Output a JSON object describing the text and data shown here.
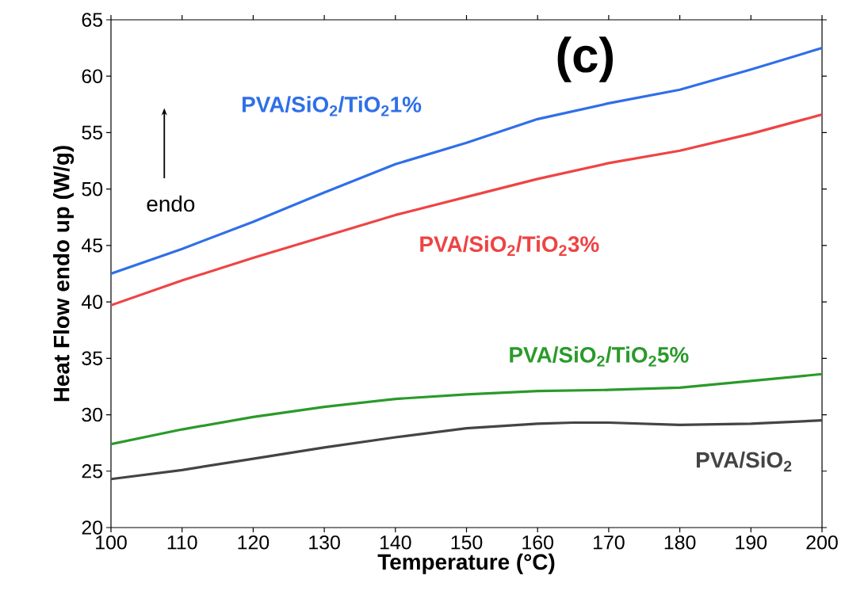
{
  "chart_data": {
    "type": "line",
    "title": "(c)",
    "xlabel": "Temperature (°C)",
    "ylabel": "Heat Flow endo up (W/g)",
    "xlim": [
      100,
      200
    ],
    "xticks": [
      100,
      110,
      120,
      130,
      140,
      150,
      160,
      170,
      180,
      190,
      200
    ],
    "ylim": [
      20,
      65
    ],
    "yticks": [
      20,
      25,
      30,
      35,
      40,
      45,
      50,
      55,
      60,
      65
    ],
    "grid": false,
    "legend": false,
    "marker": "none",
    "line_style": "solid",
    "annotations": [
      "endo"
    ],
    "series": [
      {
        "name": "PVA/SiO$_{2}$/TiO$_{2}$1%",
        "color": "#2f6fe8",
        "x": [
          100,
          110,
          120,
          130,
          140,
          150,
          160,
          170,
          180,
          190,
          200
        ],
        "values": [
          42.5,
          44.7,
          47.1,
          49.7,
          52.2,
          54.1,
          56.2,
          57.6,
          58.8,
          60.6,
          62.5
        ]
      },
      {
        "name": "PVA/SiO$_{2}$/TiO$_{2}$3%",
        "color": "#ee4444",
        "x": [
          100,
          110,
          120,
          130,
          140,
          150,
          160,
          170,
          180,
          190,
          200
        ],
        "values": [
          39.7,
          41.9,
          43.9,
          45.8,
          47.7,
          49.3,
          50.9,
          52.3,
          53.4,
          54.9,
          56.6
        ]
      },
      {
        "name": "PVA/SiO$_{2}$/TiO$_{2}$5%",
        "color": "#2a9a2a",
        "x": [
          100,
          110,
          120,
          130,
          140,
          150,
          160,
          170,
          180,
          190,
          200
        ],
        "values": [
          27.4,
          28.7,
          29.8,
          30.7,
          31.4,
          31.8,
          32.1,
          32.2,
          32.4,
          33.0,
          33.6
        ]
      },
      {
        "name": "PVA/SiO$_{2}$",
        "color": "#444444",
        "x": [
          100,
          110,
          120,
          130,
          140,
          150,
          160,
          165,
          170,
          180,
          190,
          200
        ],
        "values": [
          24.3,
          25.1,
          26.1,
          27.1,
          28.0,
          28.8,
          29.2,
          29.3,
          29.3,
          29.1,
          29.2,
          29.5
        ]
      }
    ]
  }
}
